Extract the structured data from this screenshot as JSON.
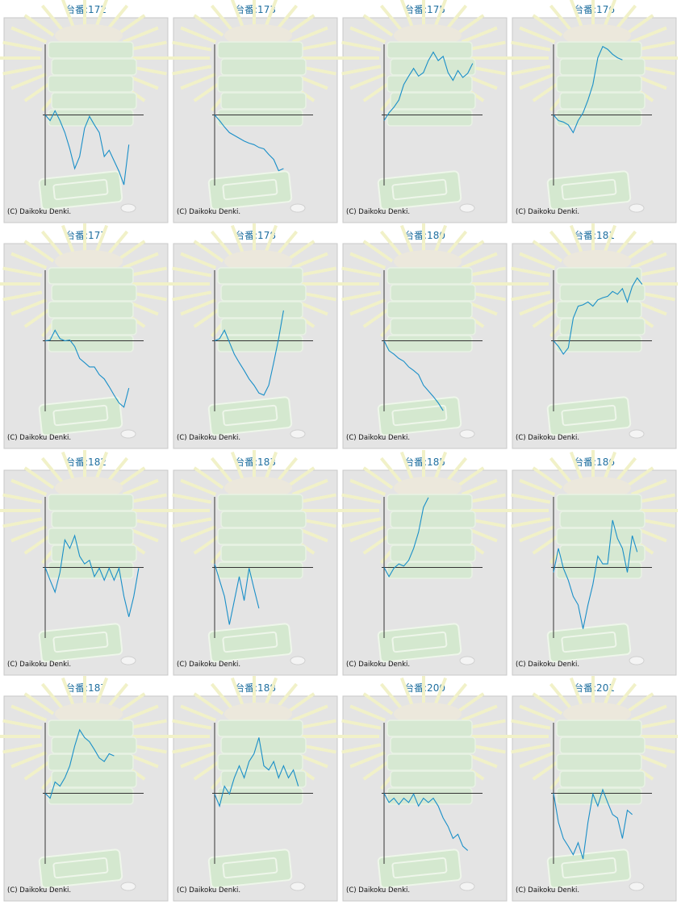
{
  "chart_data": [
    {
      "type": "line",
      "title": "台番:172",
      "copyright": "(C) Daikoku Denki.",
      "color": "#1a8fc8",
      "xlim": [
        0,
        20
      ],
      "ylim": [
        -100,
        100
      ],
      "values": [
        0,
        -8,
        6,
        -8,
        -25,
        -48,
        -76,
        -59,
        -19,
        -2,
        -14,
        -25,
        -59,
        -50,
        -65,
        -80,
        -99,
        -42
      ]
    },
    {
      "type": "line",
      "title": "台番:173",
      "copyright": "(C) Daikoku Denki.",
      "color": "#1a8fc8",
      "xlim": [
        0,
        20
      ],
      "ylim": [
        -100,
        100
      ],
      "values": [
        0,
        -8,
        -17,
        -25,
        -29,
        -33,
        -37,
        -40,
        -42,
        -46,
        -48,
        -56,
        -63,
        -79,
        -76
      ]
    },
    {
      "type": "line",
      "title": "台番:175",
      "copyright": "(C) Daikoku Denki.",
      "color": "#1a8fc8",
      "xlim": [
        0,
        20
      ],
      "ylim": [
        -100,
        100
      ],
      "values": [
        -8,
        3,
        11,
        21,
        43,
        55,
        66,
        55,
        60,
        77,
        89,
        77,
        83,
        60,
        49,
        63,
        53,
        59,
        73
      ]
    },
    {
      "type": "line",
      "title": "台番:176",
      "copyright": "(C) Daikoku Denki.",
      "color": "#1a8fc8",
      "xlim": [
        0,
        20
      ],
      "ylim": [
        -100,
        100
      ],
      "values": [
        0,
        -8,
        -10,
        -14,
        -25,
        -8,
        3,
        21,
        43,
        81,
        97,
        93,
        86,
        81,
        78
      ]
    },
    {
      "type": "line",
      "title": "台番:177",
      "copyright": "(C) Daikoku Denki.",
      "color": "#1a8fc8",
      "xlim": [
        0,
        20
      ],
      "ylim": [
        -100,
        100
      ],
      "values": [
        0,
        1,
        15,
        3,
        0,
        1,
        -8,
        -25,
        -31,
        -37,
        -37,
        -48,
        -54,
        -65,
        -77,
        -88,
        -94,
        -67
      ]
    },
    {
      "type": "line",
      "title": "台番:178",
      "copyright": "(C) Daikoku Denki.",
      "color": "#1a8fc8",
      "xlim": [
        0,
        20
      ],
      "ylim": [
        -100,
        100
      ],
      "values": [
        0,
        3,
        15,
        -2,
        -19,
        -31,
        -42,
        -54,
        -63,
        -74,
        -77,
        -63,
        -31,
        3,
        43
      ]
    },
    {
      "type": "line",
      "title": "台番:180",
      "copyright": "(C) Daikoku Denki.",
      "color": "#1a8fc8",
      "xlim": [
        0,
        20
      ],
      "ylim": [
        -100,
        100
      ],
      "values": [
        0,
        -14,
        -19,
        -25,
        -29,
        -37,
        -42,
        -48,
        -63,
        -71,
        -79,
        -88,
        -99
      ]
    },
    {
      "type": "line",
      "title": "台番:181",
      "copyright": "(C) Daikoku Denki.",
      "color": "#1a8fc8",
      "xlim": [
        0,
        20
      ],
      "ylim": [
        -100,
        100
      ],
      "values": [
        0,
        -8,
        -19,
        -10,
        32,
        49,
        51,
        55,
        49,
        58,
        61,
        63,
        70,
        66,
        74,
        55,
        77,
        89,
        80
      ]
    },
    {
      "type": "line",
      "title": "台番:182",
      "copyright": "(C) Daikoku Denki.",
      "color": "#1a8fc8",
      "xlim": [
        0,
        20
      ],
      "ylim": [
        -100,
        100
      ],
      "values": [
        0,
        -18,
        -35,
        -7,
        39,
        27,
        45,
        16,
        5,
        10,
        -13,
        -1,
        -18,
        -1,
        -18,
        -1,
        -41,
        -70,
        -41,
        -1
      ]
    },
    {
      "type": "line",
      "title": "台番:183",
      "copyright": "(C) Daikoku Denki.",
      "color": "#1a8fc8",
      "xlim": [
        0,
        20
      ],
      "ylim": [
        -100,
        100
      ],
      "values": [
        5,
        -18,
        -41,
        -81,
        -47,
        -13,
        -47,
        -1,
        -30,
        -58
      ]
    },
    {
      "type": "line",
      "title": "台番:185",
      "copyright": "(C) Daikoku Denki.",
      "color": "#1a8fc8",
      "xlim": [
        0,
        20
      ],
      "ylim": [
        -100,
        100
      ],
      "values": [
        0,
        -13,
        -1,
        5,
        2,
        10,
        27,
        50,
        85,
        99
      ]
    },
    {
      "type": "line",
      "title": "台番:186",
      "copyright": "(C) Daikoku Denki.",
      "color": "#1a8fc8",
      "xlim": [
        0,
        20
      ],
      "ylim": [
        -100,
        100
      ],
      "values": [
        -7,
        27,
        -1,
        -18,
        -41,
        -53,
        -87,
        -53,
        -24,
        16,
        5,
        5,
        67,
        41,
        27,
        -7,
        45,
        22
      ]
    },
    {
      "type": "line",
      "title": "台番:187",
      "copyright": "(C) Daikoku Denki.",
      "color": "#1a8fc8",
      "xlim": [
        0,
        20
      ],
      "ylim": [
        -100,
        100
      ],
      "values": [
        0,
        -7,
        16,
        10,
        22,
        39,
        67,
        90,
        79,
        73,
        62,
        50,
        45,
        56,
        53
      ]
    },
    {
      "type": "line",
      "title": "台番:188",
      "copyright": "(C) Daikoku Denki.",
      "color": "#1a8fc8",
      "xlim": [
        0,
        20
      ],
      "ylim": [
        -100,
        100
      ],
      "values": [
        -1,
        -18,
        10,
        -1,
        22,
        39,
        22,
        45,
        56,
        79,
        39,
        33,
        45,
        22,
        39,
        22,
        33,
        10
      ]
    },
    {
      "type": "line",
      "title": "台番:200",
      "copyright": "(C) Daikoku Denki.",
      "color": "#1a8fc8",
      "xlim": [
        0,
        20
      ],
      "ylim": [
        -100,
        100
      ],
      "values": [
        0,
        -13,
        -7,
        -16,
        -7,
        -13,
        -1,
        -18,
        -7,
        -13,
        -7,
        -18,
        -35,
        -47,
        -64,
        -58,
        -75,
        -81
      ]
    },
    {
      "type": "line",
      "title": "台番:201",
      "copyright": "(C) Daikoku Denki.",
      "color": "#1a8fc8",
      "xlim": [
        0,
        20
      ],
      "ylim": [
        -100,
        100
      ],
      "values": [
        0,
        -41,
        -64,
        -75,
        -87,
        -70,
        -93,
        -41,
        -1,
        -18,
        5,
        -13,
        -30,
        -35,
        -64,
        -24,
        -30
      ]
    }
  ]
}
